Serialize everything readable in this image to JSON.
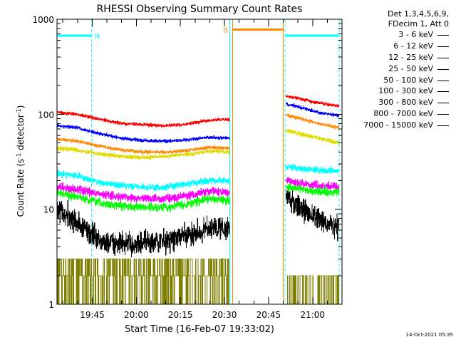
{
  "chart_data": {
    "type": "line",
    "title": "RHESSI Observing Summary Count Rates",
    "xlabel": "Start Time (16-Feb-07 19:33:02)",
    "ylabel_main": "Count Rate (s",
    "ylabel_sup1": "-1",
    "ylabel_mid": " detector",
    "ylabel_sup2": "-1",
    "ylabel_end": ")",
    "yscale": "log",
    "ylim": [
      1,
      1000
    ],
    "yticks": [
      {
        "v": 1,
        "label": "1"
      },
      {
        "v": 10,
        "label": "10"
      },
      {
        "v": 100,
        "label": "100"
      },
      {
        "v": 1000,
        "label": "1000"
      }
    ],
    "xlim_min": [
      33,
      130
    ],
    "xticks": [
      {
        "t": 45,
        "label": "19:45"
      },
      {
        "t": 60,
        "label": "20:00"
      },
      {
        "t": 75,
        "label": "20:15"
      },
      {
        "t": 90,
        "label": "20:30"
      },
      {
        "t": 105,
        "label": "20:45"
      },
      {
        "t": 120,
        "label": "21:00"
      }
    ],
    "segments": [
      {
        "start": 33,
        "end": 91.8
      },
      {
        "start": 111,
        "end": 129
      }
    ],
    "legend_header": [
      "Det 1,3,4,5,6,9,",
      "FDecim 1, Att 0"
    ],
    "series": [
      {
        "name": "3 - 6 keV",
        "color": "#000000",
        "seg1": [
          [
            33,
            10
          ],
          [
            38,
            8
          ],
          [
            43,
            6
          ],
          [
            48,
            4.6
          ],
          [
            55,
            4.3
          ],
          [
            62,
            4.3
          ],
          [
            70,
            4.6
          ],
          [
            78,
            5.3
          ],
          [
            85,
            6.5
          ],
          [
            91,
            6.2
          ]
        ],
        "seg2": [
          [
            111,
            14
          ],
          [
            115,
            11
          ],
          [
            120,
            8.5
          ],
          [
            125,
            7
          ],
          [
            129,
            6.5
          ]
        ],
        "noise": 0.13
      },
      {
        "name": "6 - 12 keV",
        "color": "#ff00ff",
        "seg1": [
          [
            33,
            17
          ],
          [
            40,
            16
          ],
          [
            48,
            14.5
          ],
          [
            55,
            13.5
          ],
          [
            62,
            13
          ],
          [
            70,
            13
          ],
          [
            78,
            14
          ],
          [
            85,
            15.5
          ],
          [
            91,
            15
          ]
        ],
        "seg2": [
          [
            111,
            20
          ],
          [
            120,
            18
          ],
          [
            129,
            17
          ]
        ],
        "noise": 0.045
      },
      {
        "name": "12 - 25 keV",
        "color": "#00ff00",
        "seg1": [
          [
            33,
            15
          ],
          [
            40,
            13.5
          ],
          [
            48,
            11.5
          ],
          [
            55,
            10.8
          ],
          [
            62,
            10.5
          ],
          [
            70,
            10.5
          ],
          [
            78,
            11.5
          ],
          [
            85,
            13
          ],
          [
            91,
            12.5
          ]
        ],
        "seg2": [
          [
            111,
            17
          ],
          [
            120,
            15.5
          ],
          [
            129,
            15
          ]
        ],
        "noise": 0.045
      },
      {
        "name": "25 - 50 keV",
        "color": "#00ffff",
        "seg1": [
          [
            33,
            24
          ],
          [
            40,
            22.5
          ],
          [
            48,
            19
          ],
          [
            55,
            18
          ],
          [
            62,
            17
          ],
          [
            70,
            17
          ],
          [
            78,
            18.5
          ],
          [
            85,
            20
          ],
          [
            91,
            20
          ]
        ],
        "seg2": [
          [
            111,
            28
          ],
          [
            120,
            26
          ],
          [
            129,
            25
          ]
        ],
        "noise": 0.035
      },
      {
        "name": "50 - 100 keV",
        "color": "#dddd00",
        "seg1": [
          [
            33,
            44
          ],
          [
            40,
            42
          ],
          [
            48,
            38
          ],
          [
            55,
            36
          ],
          [
            62,
            35
          ],
          [
            70,
            36
          ],
          [
            78,
            38
          ],
          [
            85,
            41
          ],
          [
            91,
            40
          ]
        ],
        "seg2": [
          [
            111,
            68
          ],
          [
            120,
            58
          ],
          [
            129,
            50
          ]
        ],
        "noise": 0.022
      },
      {
        "name": "100 - 300 keV",
        "color": "#ff0000",
        "seg1": [
          [
            33,
            105
          ],
          [
            40,
            100
          ],
          [
            48,
            88
          ],
          [
            55,
            80
          ],
          [
            62,
            78
          ],
          [
            68,
            76
          ],
          [
            75,
            77
          ],
          [
            82,
            84
          ],
          [
            88,
            88
          ],
          [
            91,
            88
          ]
        ],
        "seg2": [
          [
            111,
            155
          ],
          [
            116,
            145
          ],
          [
            122,
            132
          ],
          [
            129,
            122
          ]
        ],
        "noise": 0.018
      },
      {
        "name": "300 - 800 keV",
        "color": "#0000ff",
        "seg1": [
          [
            33,
            76
          ],
          [
            40,
            72
          ],
          [
            48,
            62
          ],
          [
            55,
            56
          ],
          [
            62,
            53
          ],
          [
            70,
            52
          ],
          [
            78,
            54
          ],
          [
            85,
            57
          ],
          [
            91,
            56
          ]
        ],
        "seg2": [
          [
            111,
            128
          ],
          [
            116,
            118
          ],
          [
            122,
            105
          ],
          [
            129,
            96
          ]
        ],
        "noise": 0.018
      },
      {
        "name": "800 - 7000 keV",
        "color": "#ff8800",
        "seg1": [
          [
            33,
            55
          ],
          [
            40,
            52
          ],
          [
            48,
            46
          ],
          [
            55,
            42
          ],
          [
            62,
            40
          ],
          [
            70,
            40
          ],
          [
            78,
            42
          ],
          [
            85,
            45
          ],
          [
            91,
            44
          ]
        ],
        "seg2": [
          [
            111,
            98
          ],
          [
            116,
            90
          ],
          [
            122,
            80
          ],
          [
            129,
            72
          ]
        ],
        "noise": 0.018
      },
      {
        "name": "7000 - 15000 keV",
        "color": "#808000",
        "seg1_levels": [
          1,
          2,
          3
        ],
        "seg2_levels": [
          1,
          2
        ],
        "noise": 0
      }
    ],
    "annotations": [
      {
        "label": "N",
        "color": "#00ffff",
        "bar": [
          33,
          44.8
        ],
        "y": 670,
        "dash_at": [
          44.8
        ]
      },
      {
        "label": "S",
        "color": "#ff8800",
        "bar": [
          92.8,
          110
        ],
        "y": 780,
        "dash_at": []
      },
      {
        "label": "",
        "color": "#00ffff",
        "bar": [
          110.6,
          129
        ],
        "y": 670,
        "dash_at": [
          110.6
        ]
      }
    ],
    "vertical_markers": [
      {
        "t": 33,
        "color": "#00ffff",
        "dashed": false
      },
      {
        "t": 91.8,
        "color": "#00ffff",
        "dashed": false
      },
      {
        "t": 92.8,
        "color": "#ff8800",
        "dashed": false
      },
      {
        "t": 110,
        "color": "#ff8800",
        "dashed": false
      },
      {
        "t": 110.6,
        "color": "#00ffff",
        "dashed": true
      },
      {
        "t": 129,
        "color": "#00ffff",
        "dashed": true
      }
    ]
  },
  "timestamp": "14-Oct-2021 05:35"
}
